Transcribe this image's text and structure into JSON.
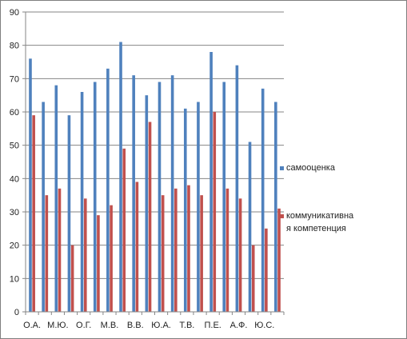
{
  "chart_data": {
    "type": "bar",
    "categories": [
      "О.А.",
      "",
      "М.Ю.",
      "",
      "О.Г.",
      "",
      "М.В.",
      "",
      "В.В.",
      "",
      "Ю.А.",
      "",
      "Т.В.",
      "",
      "П.Е.",
      "",
      "А.Ф.",
      "",
      "Ю.С.",
      ""
    ],
    "series": [
      {
        "name": "самооценка",
        "color": "#4f81bd",
        "values": [
          76,
          63,
          68,
          59,
          66,
          69,
          73,
          81,
          71,
          65,
          69,
          71,
          61,
          63,
          78,
          69,
          74,
          51,
          67,
          63
        ]
      },
      {
        "name": "коммуникативна я компетенция",
        "color": "#c0504d",
        "values": [
          59,
          35,
          37,
          20,
          34,
          29,
          32,
          49,
          39,
          57,
          35,
          37,
          38,
          35,
          60,
          37,
          34,
          20,
          25,
          31
        ]
      }
    ],
    "ylim": [
      0,
      90
    ],
    "yticks": [
      0,
      10,
      20,
      30,
      40,
      50,
      60,
      70,
      80,
      90
    ],
    "grid": true,
    "legend_position": "right",
    "legend_lines": [
      [
        "самооценка"
      ],
      [
        "коммуникативна",
        "я компетенция"
      ]
    ]
  }
}
